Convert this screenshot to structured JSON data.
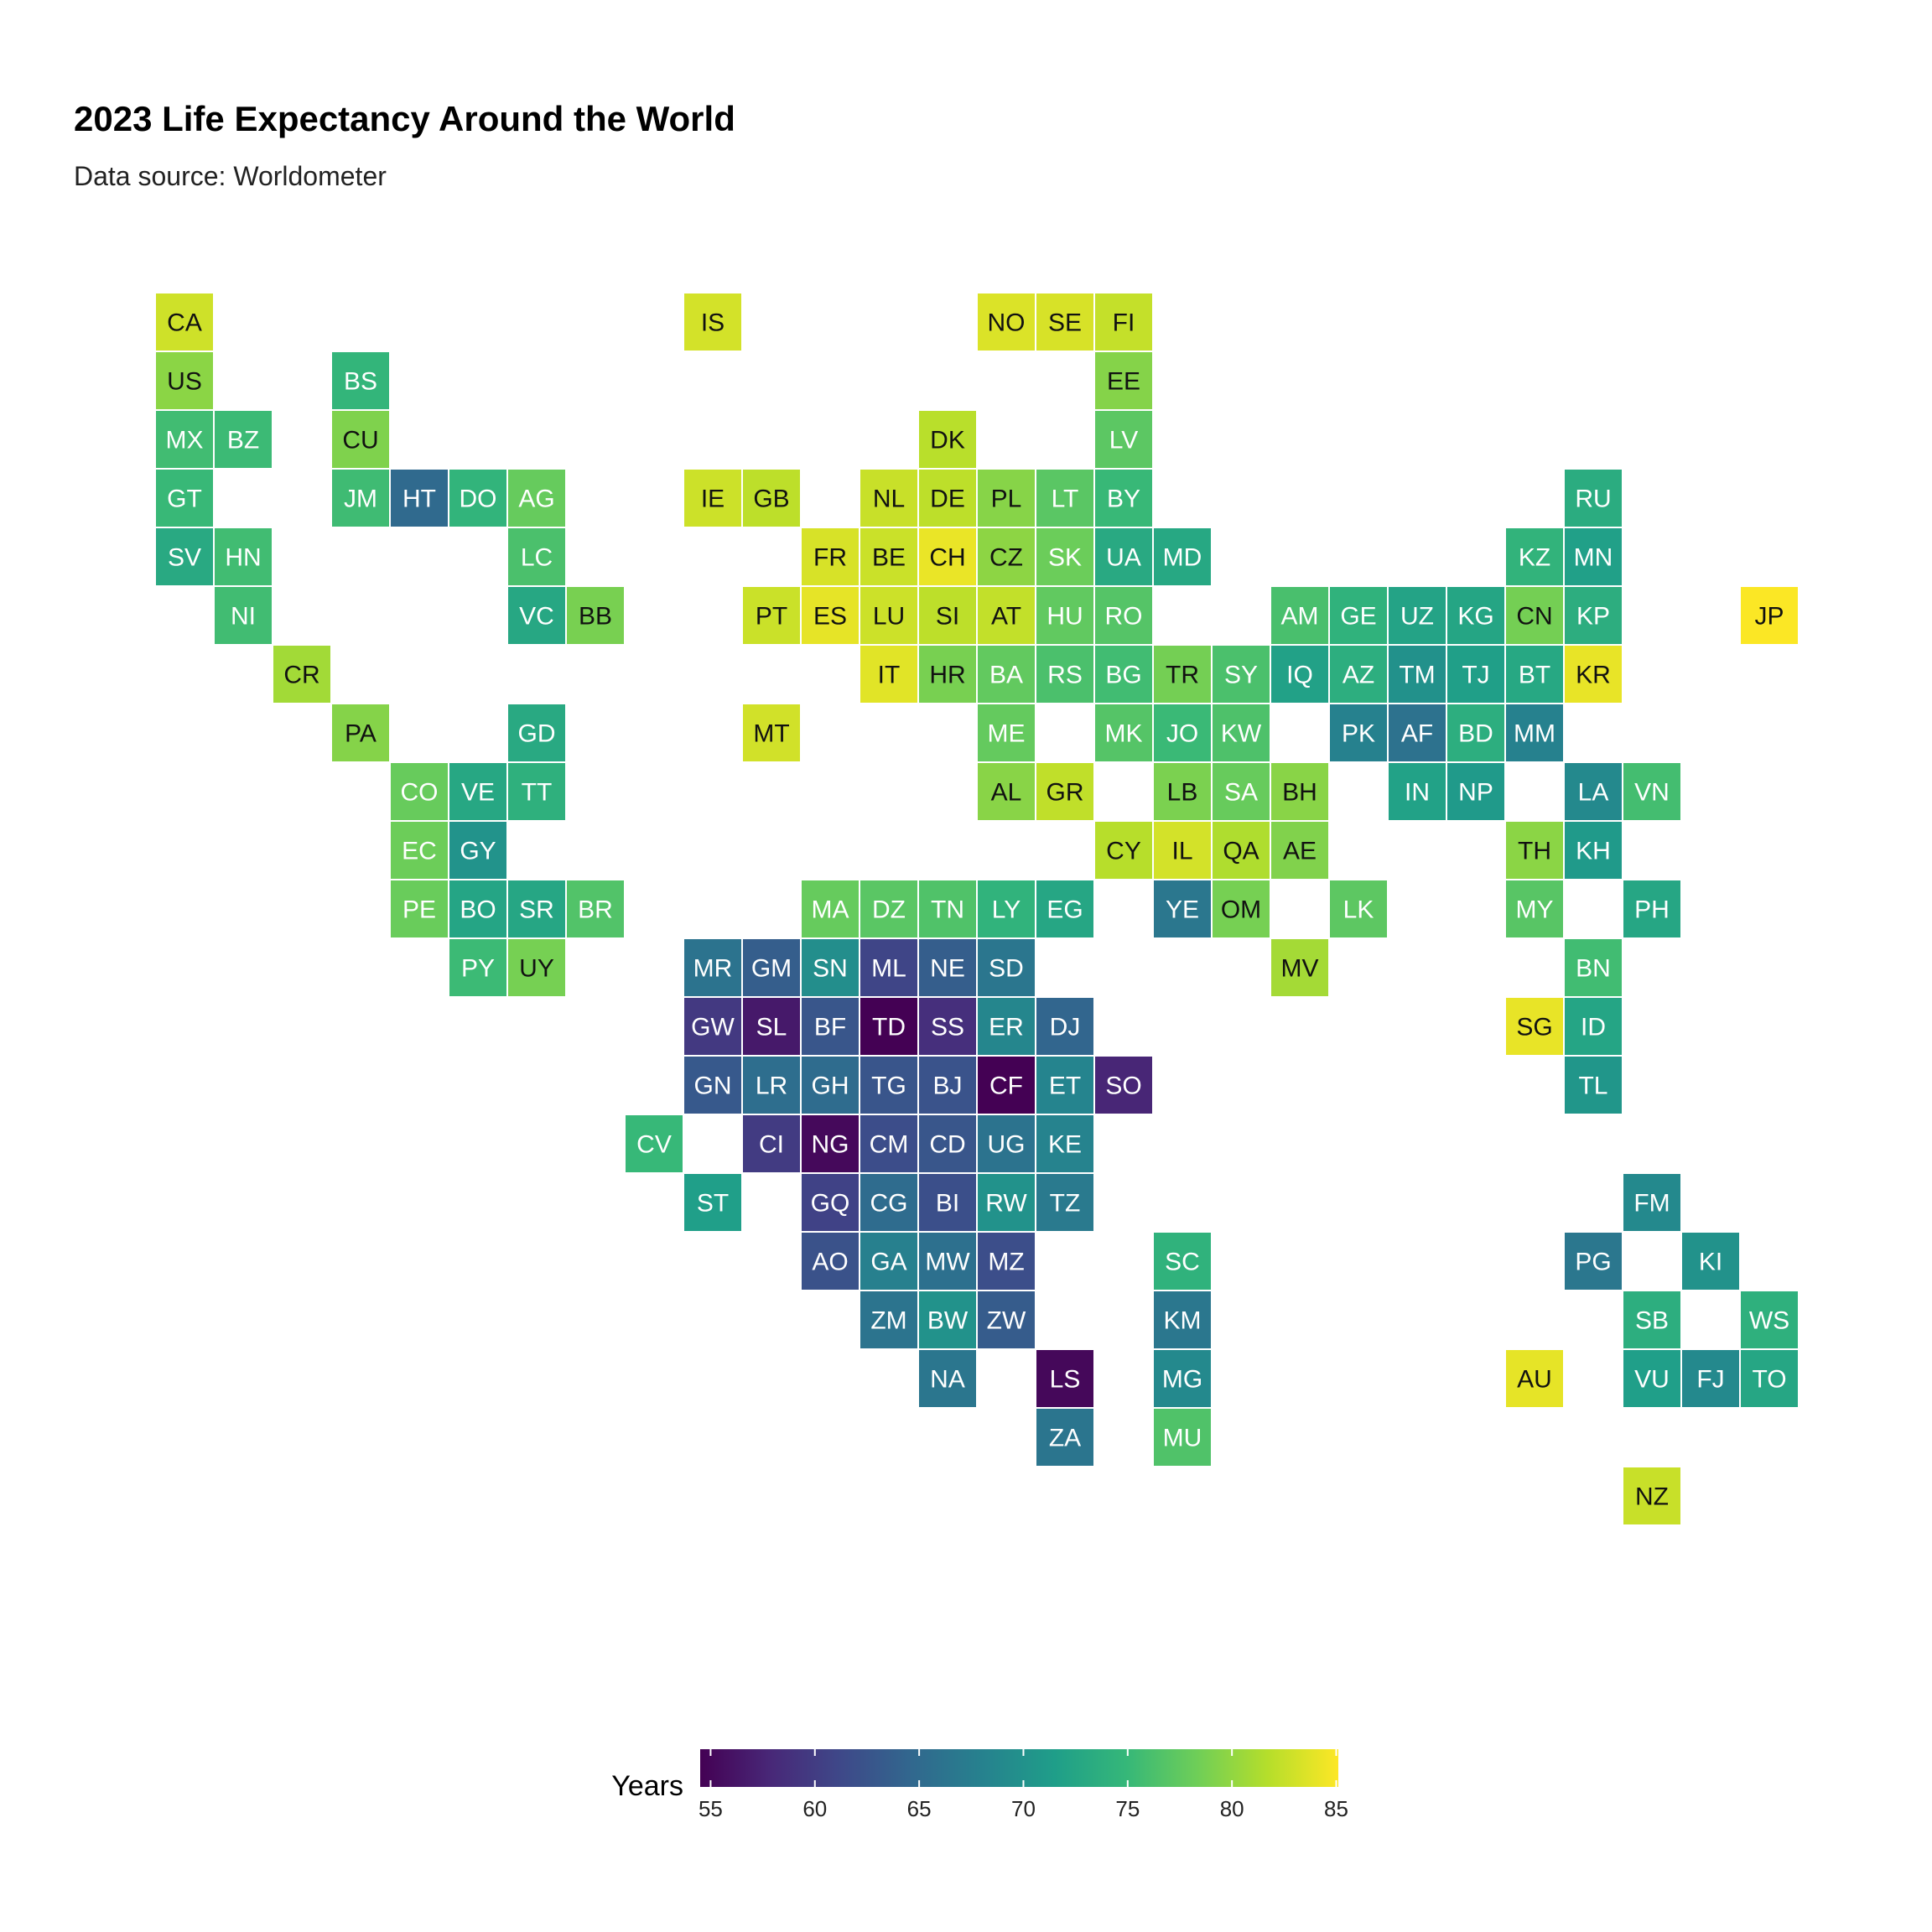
{
  "chart_data": {
    "type": "heatmap",
    "title": "2023 Life Expectancy Around the World",
    "subtitle": "Data source: Worldometer",
    "legend": {
      "title": "Years",
      "ticks": [
        55,
        60,
        65,
        70,
        75,
        80,
        85
      ],
      "range": [
        54.5,
        85.1
      ],
      "palette": "viridis",
      "placement": "bottom"
    },
    "tiles": [
      {
        "code": "CA",
        "col": 0,
        "row": 0,
        "value": 82.9
      },
      {
        "code": "IS",
        "col": 9,
        "row": 0,
        "value": 83.1
      },
      {
        "code": "NO",
        "col": 14,
        "row": 0,
        "value": 83.5
      },
      {
        "code": "SE",
        "col": 15,
        "row": 0,
        "value": 83.3
      },
      {
        "code": "FI",
        "col": 16,
        "row": 0,
        "value": 82.4
      },
      {
        "code": "US",
        "col": 0,
        "row": 1,
        "value": 79.7
      },
      {
        "code": "BS",
        "col": 3,
        "row": 1,
        "value": 74.6
      },
      {
        "code": "EE",
        "col": 16,
        "row": 1,
        "value": 79.4
      },
      {
        "code": "MX",
        "col": 0,
        "row": 2,
        "value": 75.6
      },
      {
        "code": "BZ",
        "col": 1,
        "row": 2,
        "value": 75.3
      },
      {
        "code": "CU",
        "col": 3,
        "row": 2,
        "value": 79.1
      },
      {
        "code": "DK",
        "col": 13,
        "row": 2,
        "value": 81.9
      },
      {
        "code": "LV",
        "col": 16,
        "row": 2,
        "value": 77.2
      },
      {
        "code": "GT",
        "col": 0,
        "row": 3,
        "value": 75.1
      },
      {
        "code": "JM",
        "col": 3,
        "row": 3,
        "value": 75.5
      },
      {
        "code": "HT",
        "col": 4,
        "row": 3,
        "value": 65.0
      },
      {
        "code": "DO",
        "col": 5,
        "row": 3,
        "value": 74.5
      },
      {
        "code": "AG",
        "col": 6,
        "row": 3,
        "value": 77.8
      },
      {
        "code": "IE",
        "col": 9,
        "row": 3,
        "value": 82.8
      },
      {
        "code": "GB",
        "col": 10,
        "row": 3,
        "value": 82.1
      },
      {
        "code": "NL",
        "col": 12,
        "row": 3,
        "value": 82.6
      },
      {
        "code": "DE",
        "col": 13,
        "row": 3,
        "value": 82.1
      },
      {
        "code": "PL",
        "col": 14,
        "row": 3,
        "value": 79.5
      },
      {
        "code": "LT",
        "col": 15,
        "row": 3,
        "value": 77.1
      },
      {
        "code": "BY",
        "col": 16,
        "row": 3,
        "value": 75.1
      },
      {
        "code": "RU",
        "col": 24,
        "row": 3,
        "value": 73.4
      },
      {
        "code": "SV",
        "col": 0,
        "row": 4,
        "value": 73.0
      },
      {
        "code": "HN",
        "col": 1,
        "row": 4,
        "value": 75.6
      },
      {
        "code": "LC",
        "col": 6,
        "row": 4,
        "value": 76.2
      },
      {
        "code": "FR",
        "col": 11,
        "row": 4,
        "value": 83.3
      },
      {
        "code": "BE",
        "col": 12,
        "row": 4,
        "value": 82.7
      },
      {
        "code": "CH",
        "col": 13,
        "row": 4,
        "value": 84.2
      },
      {
        "code": "CZ",
        "col": 14,
        "row": 4,
        "value": 79.8
      },
      {
        "code": "SK",
        "col": 15,
        "row": 4,
        "value": 78.1
      },
      {
        "code": "UA",
        "col": 16,
        "row": 4,
        "value": 73.0
      },
      {
        "code": "MD",
        "col": 17,
        "row": 4,
        "value": 72.8
      },
      {
        "code": "KZ",
        "col": 23,
        "row": 4,
        "value": 74.4
      },
      {
        "code": "MN",
        "col": 24,
        "row": 4,
        "value": 71.8
      },
      {
        "code": "NI",
        "col": 1,
        "row": 5,
        "value": 75.6
      },
      {
        "code": "VC",
        "col": 6,
        "row": 5,
        "value": 72.7
      },
      {
        "code": "BB",
        "col": 7,
        "row": 5,
        "value": 78.8
      },
      {
        "code": "PT",
        "col": 10,
        "row": 5,
        "value": 82.7
      },
      {
        "code": "ES",
        "col": 11,
        "row": 5,
        "value": 84.0
      },
      {
        "code": "LU",
        "col": 12,
        "row": 5,
        "value": 82.8
      },
      {
        "code": "SI",
        "col": 13,
        "row": 5,
        "value": 82.1
      },
      {
        "code": "AT",
        "col": 14,
        "row": 5,
        "value": 82.3
      },
      {
        "code": "HU",
        "col": 15,
        "row": 5,
        "value": 77.5
      },
      {
        "code": "RO",
        "col": 16,
        "row": 5,
        "value": 76.8
      },
      {
        "code": "AM",
        "col": 19,
        "row": 5,
        "value": 76.1
      },
      {
        "code": "GE",
        "col": 20,
        "row": 5,
        "value": 74.2
      },
      {
        "code": "UZ",
        "col": 21,
        "row": 5,
        "value": 72.2
      },
      {
        "code": "KG",
        "col": 22,
        "row": 5,
        "value": 72.5
      },
      {
        "code": "CN",
        "col": 23,
        "row": 5,
        "value": 78.6
      },
      {
        "code": "KP",
        "col": 24,
        "row": 5,
        "value": 73.6
      },
      {
        "code": "JP",
        "col": 27,
        "row": 5,
        "value": 85.0
      },
      {
        "code": "CR",
        "col": 2,
        "row": 6,
        "value": 80.8
      },
      {
        "code": "IT",
        "col": 12,
        "row": 6,
        "value": 83.8
      },
      {
        "code": "HR",
        "col": 13,
        "row": 6,
        "value": 78.8
      },
      {
        "code": "BA",
        "col": 14,
        "row": 6,
        "value": 77.6
      },
      {
        "code": "RS",
        "col": 15,
        "row": 6,
        "value": 76.2
      },
      {
        "code": "BG",
        "col": 16,
        "row": 6,
        "value": 75.6
      },
      {
        "code": "TR",
        "col": 17,
        "row": 6,
        "value": 78.6
      },
      {
        "code": "SY",
        "col": 18,
        "row": 6,
        "value": 76.2
      },
      {
        "code": "IQ",
        "col": 19,
        "row": 6,
        "value": 71.9
      },
      {
        "code": "AZ",
        "col": 20,
        "row": 6,
        "value": 73.7
      },
      {
        "code": "TM",
        "col": 21,
        "row": 6,
        "value": 69.9
      },
      {
        "code": "TJ",
        "col": 22,
        "row": 6,
        "value": 71.7
      },
      {
        "code": "BT",
        "col": 23,
        "row": 6,
        "value": 72.8
      },
      {
        "code": "KR",
        "col": 24,
        "row": 6,
        "value": 84.1
      },
      {
        "code": "PA",
        "col": 3,
        "row": 7,
        "value": 79.4
      },
      {
        "code": "GD",
        "col": 6,
        "row": 7,
        "value": 73.0
      },
      {
        "code": "MT",
        "col": 10,
        "row": 7,
        "value": 83.0
      },
      {
        "code": "ME",
        "col": 14,
        "row": 7,
        "value": 77.7
      },
      {
        "code": "MK",
        "col": 16,
        "row": 7,
        "value": 76.8
      },
      {
        "code": "JO",
        "col": 17,
        "row": 7,
        "value": 75.2
      },
      {
        "code": "KW",
        "col": 18,
        "row": 7,
        "value": 76.4
      },
      {
        "code": "PK",
        "col": 20,
        "row": 7,
        "value": 68.0
      },
      {
        "code": "AF",
        "col": 21,
        "row": 7,
        "value": 66.0
      },
      {
        "code": "BD",
        "col": 22,
        "row": 7,
        "value": 73.7
      },
      {
        "code": "MM",
        "col": 23,
        "row": 7,
        "value": 68.0
      },
      {
        "code": "CO",
        "col": 4,
        "row": 8,
        "value": 77.9
      },
      {
        "code": "VE",
        "col": 5,
        "row": 8,
        "value": 72.7
      },
      {
        "code": "TT",
        "col": 6,
        "row": 8,
        "value": 74.0
      },
      {
        "code": "AL",
        "col": 14,
        "row": 8,
        "value": 79.6
      },
      {
        "code": "GR",
        "col": 15,
        "row": 8,
        "value": 82.2
      },
      {
        "code": "LB",
        "col": 17,
        "row": 8,
        "value": 78.9
      },
      {
        "code": "SA",
        "col": 18,
        "row": 8,
        "value": 77.9
      },
      {
        "code": "BH",
        "col": 19,
        "row": 8,
        "value": 79.6
      },
      {
        "code": "IN",
        "col": 21,
        "row": 8,
        "value": 72.0
      },
      {
        "code": "NP",
        "col": 22,
        "row": 8,
        "value": 71.0
      },
      {
        "code": "LA",
        "col": 24,
        "row": 8,
        "value": 69.0
      },
      {
        "code": "VN",
        "col": 25,
        "row": 8,
        "value": 75.8
      },
      {
        "code": "EC",
        "col": 4,
        "row": 9,
        "value": 78.2
      },
      {
        "code": "GY",
        "col": 5,
        "row": 9,
        "value": 70.2
      },
      {
        "code": "CY",
        "col": 16,
        "row": 9,
        "value": 81.8
      },
      {
        "code": "IL",
        "col": 17,
        "row": 9,
        "value": 83.1
      },
      {
        "code": "QA",
        "col": 18,
        "row": 9,
        "value": 81.4
      },
      {
        "code": "AE",
        "col": 19,
        "row": 9,
        "value": 79.2
      },
      {
        "code": "TH",
        "col": 23,
        "row": 9,
        "value": 79.7
      },
      {
        "code": "KH",
        "col": 24,
        "row": 9,
        "value": 71.0
      },
      {
        "code": "PE",
        "col": 4,
        "row": 10,
        "value": 78.0
      },
      {
        "code": "BO",
        "col": 5,
        "row": 10,
        "value": 72.4
      },
      {
        "code": "SR",
        "col": 6,
        "row": 10,
        "value": 72.6
      },
      {
        "code": "BR",
        "col": 7,
        "row": 10,
        "value": 76.6
      },
      {
        "code": "MA",
        "col": 11,
        "row": 10,
        "value": 77.8
      },
      {
        "code": "DZ",
        "col": 12,
        "row": 10,
        "value": 77.1
      },
      {
        "code": "TN",
        "col": 13,
        "row": 10,
        "value": 76.5
      },
      {
        "code": "LY",
        "col": 14,
        "row": 10,
        "value": 74.3
      },
      {
        "code": "EG",
        "col": 15,
        "row": 10,
        "value": 72.6
      },
      {
        "code": "YE",
        "col": 17,
        "row": 10,
        "value": 66.7
      },
      {
        "code": "OM",
        "col": 18,
        "row": 10,
        "value": 78.7
      },
      {
        "code": "LK",
        "col": 20,
        "row": 10,
        "value": 77.3
      },
      {
        "code": "MY",
        "col": 23,
        "row": 10,
        "value": 77.0
      },
      {
        "code": "PH",
        "col": 25,
        "row": 10,
        "value": 72.6
      },
      {
        "code": "PY",
        "col": 5,
        "row": 11,
        "value": 75.3
      },
      {
        "code": "UY",
        "col": 6,
        "row": 11,
        "value": 78.7
      },
      {
        "code": "MR",
        "col": 9,
        "row": 11,
        "value": 66.2
      },
      {
        "code": "GM",
        "col": 10,
        "row": 11,
        "value": 63.6
      },
      {
        "code": "SN",
        "col": 11,
        "row": 11,
        "value": 69.5
      },
      {
        "code": "ML",
        "col": 12,
        "row": 11,
        "value": 60.9
      },
      {
        "code": "NE",
        "col": 13,
        "row": 11,
        "value": 63.6
      },
      {
        "code": "SD",
        "col": 14,
        "row": 11,
        "value": 66.5
      },
      {
        "code": "MV",
        "col": 19,
        "row": 11,
        "value": 80.9
      },
      {
        "code": "BN",
        "col": 24,
        "row": 11,
        "value": 75.6
      },
      {
        "code": "GW",
        "col": 9,
        "row": 12,
        "value": 59.6
      },
      {
        "code": "SL",
        "col": 10,
        "row": 12,
        "value": 56.6
      },
      {
        "code": "BF",
        "col": 11,
        "row": 12,
        "value": 62.7
      },
      {
        "code": "TD",
        "col": 12,
        "row": 12,
        "value": 54.5
      },
      {
        "code": "SS",
        "col": 13,
        "row": 12,
        "value": 58.6
      },
      {
        "code": "ER",
        "col": 14,
        "row": 12,
        "value": 68.6
      },
      {
        "code": "DJ",
        "col": 15,
        "row": 12,
        "value": 64.5
      },
      {
        "code": "SG",
        "col": 23,
        "row": 12,
        "value": 84.1
      },
      {
        "code": "ID",
        "col": 24,
        "row": 12,
        "value": 72.4
      },
      {
        "code": "GN",
        "col": 9,
        "row": 13,
        "value": 63.0
      },
      {
        "code": "LR",
        "col": 10,
        "row": 13,
        "value": 65.5
      },
      {
        "code": "GH",
        "col": 11,
        "row": 13,
        "value": 65.2
      },
      {
        "code": "TG",
        "col": 12,
        "row": 13,
        "value": 62.6
      },
      {
        "code": "BJ",
        "col": 13,
        "row": 13,
        "value": 62.4
      },
      {
        "code": "CF",
        "col": 14,
        "row": 13,
        "value": 54.5
      },
      {
        "code": "ET",
        "col": 15,
        "row": 13,
        "value": 68.4
      },
      {
        "code": "SO",
        "col": 16,
        "row": 13,
        "value": 57.7
      },
      {
        "code": "TL",
        "col": 24,
        "row": 13,
        "value": 70.5
      },
      {
        "code": "CV",
        "col": 8,
        "row": 14,
        "value": 75.0
      },
      {
        "code": "CI",
        "col": 10,
        "row": 14,
        "value": 59.9
      },
      {
        "code": "NG",
        "col": 11,
        "row": 14,
        "value": 55.2
      },
      {
        "code": "CM",
        "col": 12,
        "row": 14,
        "value": 61.7
      },
      {
        "code": "CD",
        "col": 13,
        "row": 14,
        "value": 62.7
      },
      {
        "code": "UG",
        "col": 14,
        "row": 14,
        "value": 66.2
      },
      {
        "code": "KE",
        "col": 15,
        "row": 14,
        "value": 68.2
      },
      {
        "code": "ST",
        "col": 9,
        "row": 15,
        "value": 71.6
      },
      {
        "code": "GQ",
        "col": 11,
        "row": 15,
        "value": 60.6
      },
      {
        "code": "CG",
        "col": 12,
        "row": 15,
        "value": 65.2
      },
      {
        "code": "BI",
        "col": 13,
        "row": 15,
        "value": 62.0
      },
      {
        "code": "RW",
        "col": 14,
        "row": 15,
        "value": 70.1
      },
      {
        "code": "TZ",
        "col": 15,
        "row": 15,
        "value": 67.0
      },
      {
        "code": "FM",
        "col": 25,
        "row": 15,
        "value": 69.0
      },
      {
        "code": "AO",
        "col": 11,
        "row": 16,
        "value": 62.3
      },
      {
        "code": "GA",
        "col": 12,
        "row": 16,
        "value": 67.8
      },
      {
        "code": "MW",
        "col": 13,
        "row": 16,
        "value": 65.8
      },
      {
        "code": "MZ",
        "col": 14,
        "row": 16,
        "value": 61.9
      },
      {
        "code": "SC",
        "col": 17,
        "row": 16,
        "value": 74.2
      },
      {
        "code": "PG",
        "col": 24,
        "row": 16,
        "value": 66.7
      },
      {
        "code": "KI",
        "col": 26,
        "row": 16,
        "value": 70.0
      },
      {
        "code": "ZM",
        "col": 12,
        "row": 17,
        "value": 66.3
      },
      {
        "code": "BW",
        "col": 13,
        "row": 17,
        "value": 70.0
      },
      {
        "code": "ZW",
        "col": 14,
        "row": 17,
        "value": 63.4
      },
      {
        "code": "KM",
        "col": 17,
        "row": 17,
        "value": 66.6
      },
      {
        "code": "SB",
        "col": 25,
        "row": 17,
        "value": 73.7
      },
      {
        "code": "WS",
        "col": 27,
        "row": 17,
        "value": 74.0
      },
      {
        "code": "NA",
        "col": 13,
        "row": 18,
        "value": 66.5
      },
      {
        "code": "LS",
        "col": 15,
        "row": 18,
        "value": 55.1
      },
      {
        "code": "MG",
        "col": 17,
        "row": 18,
        "value": 69.0
      },
      {
        "code": "AU",
        "col": 23,
        "row": 18,
        "value": 84.0
      },
      {
        "code": "VU",
        "col": 25,
        "row": 18,
        "value": 71.6
      },
      {
        "code": "FJ",
        "col": 26,
        "row": 18,
        "value": 68.9
      },
      {
        "code": "TO",
        "col": 27,
        "row": 18,
        "value": 72.6
      },
      {
        "code": "ZA",
        "col": 15,
        "row": 19,
        "value": 66.4
      },
      {
        "code": "MU",
        "col": 17,
        "row": 19,
        "value": 76.5
      },
      {
        "code": "NZ",
        "col": 25,
        "row": 20,
        "value": 82.6
      }
    ]
  }
}
